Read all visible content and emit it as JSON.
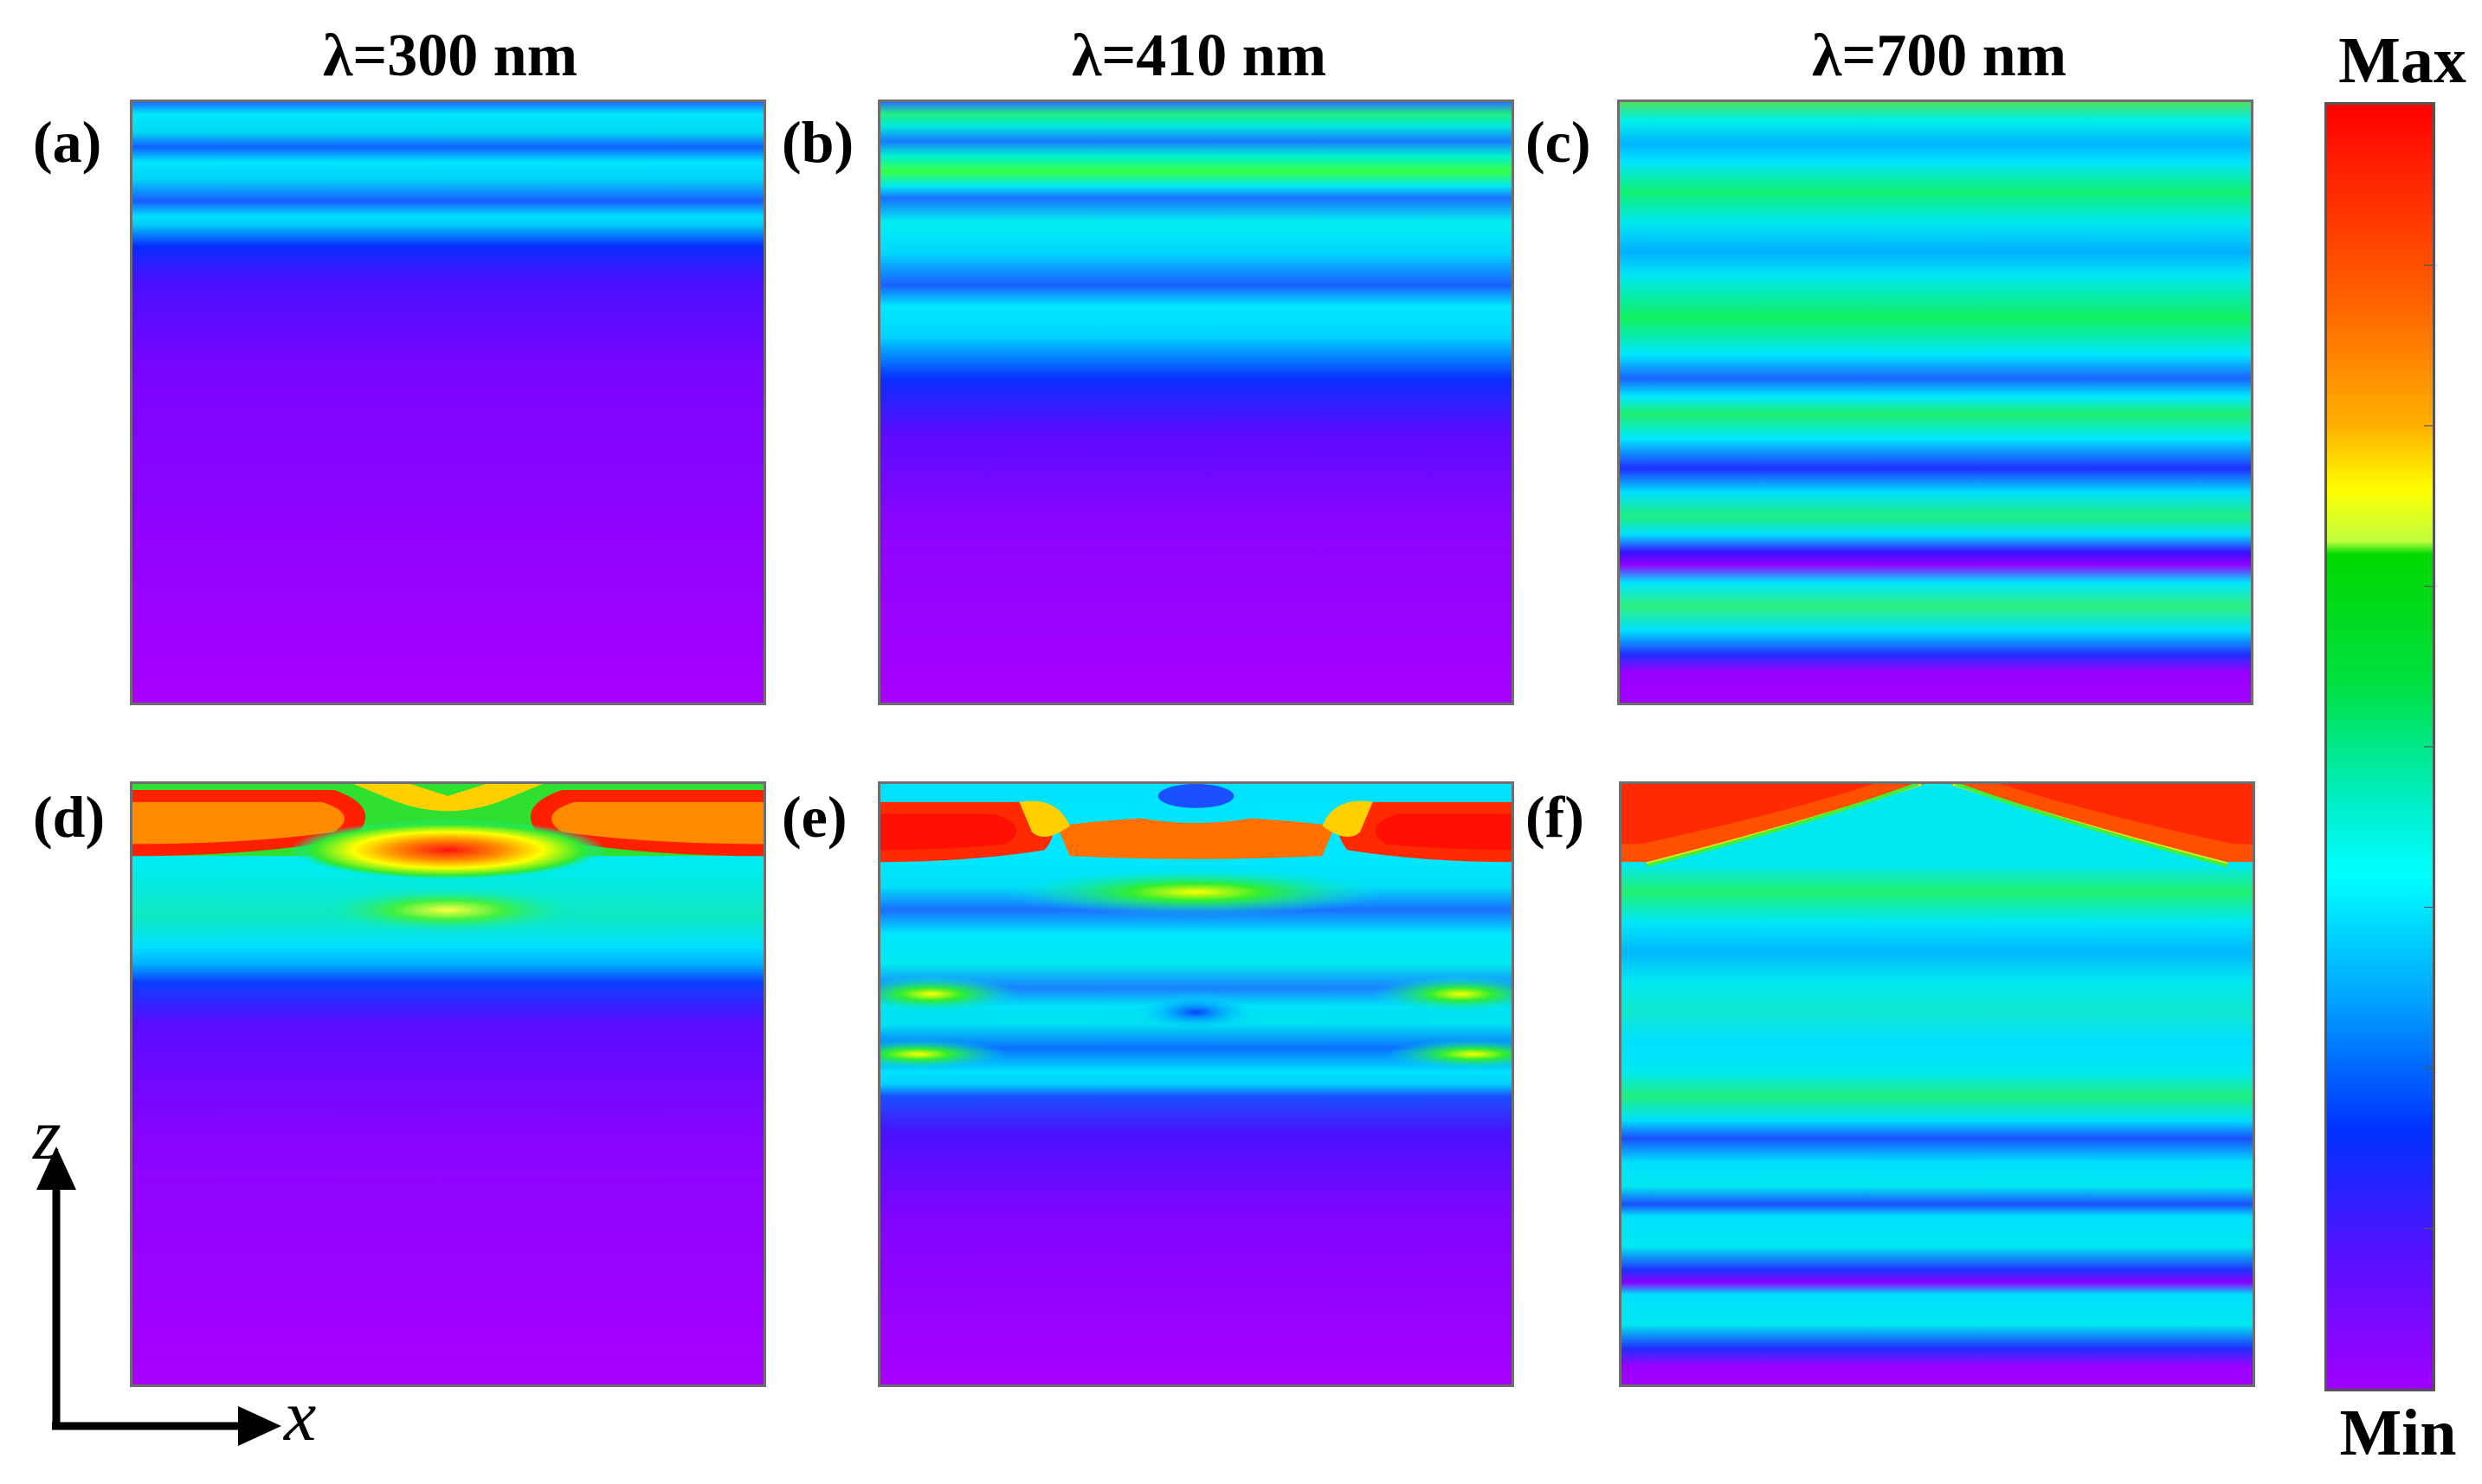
{
  "columns": {
    "a": "λ=300 nm",
    "b": "λ=410 nm",
    "c": "λ=700 nm"
  },
  "panels": {
    "a": "(a)",
    "b": "(b)",
    "c": "(c)",
    "d": "(d)",
    "e": "(e)",
    "f": "(f)"
  },
  "colorbar": {
    "max_label": "Max",
    "min_label": "Min",
    "colors": [
      "#ff0000",
      "#ff8a00",
      "#ffff00",
      "#00dc00",
      "#00ffff",
      "#0040ff",
      "#9000ff"
    ]
  },
  "axes": {
    "vertical": "z",
    "horizontal": "x"
  }
}
